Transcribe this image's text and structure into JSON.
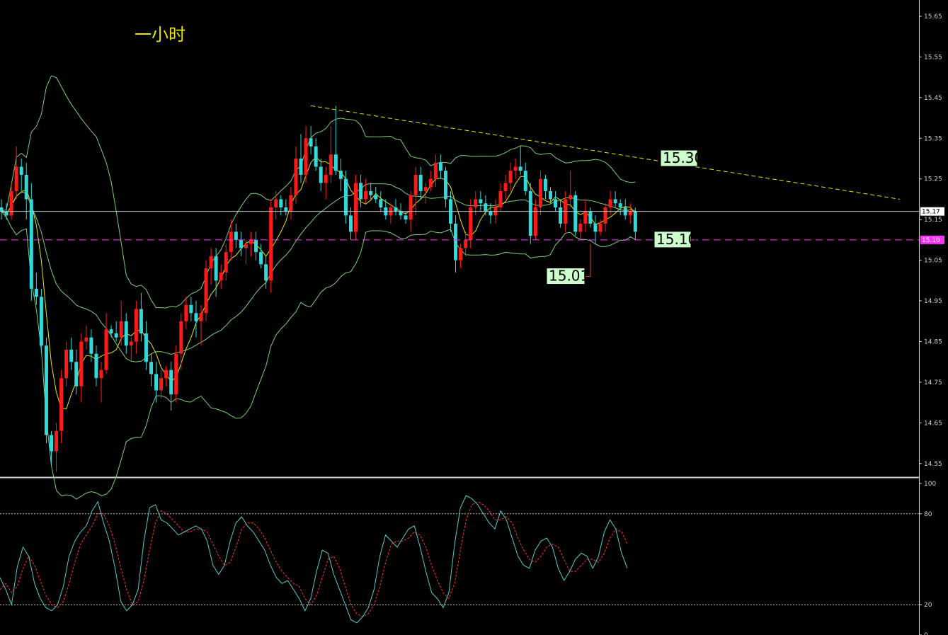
{
  "title": "一小时",
  "chart_data": {
    "type": "candlestick",
    "timeframe_label": "一小时",
    "price_axis": {
      "ticks": [
        "15.65",
        "15.55",
        "15.45",
        "15.35",
        "15.25",
        "15.15",
        "15.05",
        "14.95",
        "14.85",
        "14.75",
        "14.65",
        "14.55"
      ],
      "range": [
        14.52,
        15.69
      ]
    },
    "current_price": {
      "value": 15.17,
      "label": "15.17",
      "color": "#b6c3cf"
    },
    "support_line": {
      "value": 15.1,
      "label": "15.10",
      "color": "#ff33ff"
    },
    "resistance_trendline": {
      "start": {
        "bar": 62,
        "price": 15.43
      },
      "end": {
        "bar": 180,
        "price": 15.2
      },
      "color": "#e6e600"
    },
    "annotations": [
      {
        "label": "15.30",
        "value": 15.3
      },
      {
        "label": "15.10",
        "value": 15.1
      },
      {
        "label": "15.01",
        "value": 15.01
      }
    ],
    "colors": {
      "up": "#ff1a1a",
      "down": "#33d9d9",
      "doji": "#33d933",
      "ma": "#e6e600",
      "bands": "#7dcf7d",
      "k": "#55cccc",
      "d": "#ff3333"
    },
    "candles": [
      [
        15.18,
        15.2,
        15.15,
        15.17
      ],
      [
        15.17,
        15.19,
        15.15,
        15.16
      ],
      [
        15.16,
        15.24,
        15.15,
        15.22
      ],
      [
        15.22,
        15.33,
        15.2,
        15.28
      ],
      [
        15.28,
        15.3,
        15.22,
        15.26
      ],
      [
        15.26,
        15.29,
        15.15,
        15.2
      ],
      [
        15.2,
        15.24,
        14.95,
        14.98
      ],
      [
        14.98,
        15.02,
        14.94,
        14.96
      ],
      [
        14.96,
        14.98,
        14.82,
        14.84
      ],
      [
        14.84,
        14.86,
        14.6,
        14.62
      ],
      [
        14.62,
        14.63,
        14.55,
        14.58
      ],
      [
        14.58,
        14.65,
        14.53,
        14.63
      ],
      [
        14.63,
        14.78,
        14.6,
        14.76
      ],
      [
        14.76,
        14.85,
        14.74,
        14.83
      ],
      [
        14.83,
        14.86,
        14.78,
        14.8
      ],
      [
        14.8,
        14.83,
        14.72,
        14.74
      ],
      [
        14.74,
        14.87,
        14.7,
        14.85
      ],
      [
        14.85,
        14.89,
        14.83,
        14.86
      ],
      [
        14.86,
        14.88,
        14.8,
        14.82
      ],
      [
        14.82,
        14.84,
        14.74,
        14.76
      ],
      [
        14.76,
        14.8,
        14.7,
        14.78
      ],
      [
        14.78,
        14.92,
        14.77,
        14.88
      ],
      [
        14.88,
        14.89,
        14.86,
        14.87
      ],
      [
        14.87,
        14.9,
        14.85,
        14.86
      ],
      [
        14.86,
        14.95,
        14.84,
        14.9
      ],
      [
        14.9,
        14.92,
        14.82,
        14.84
      ],
      [
        14.84,
        14.86,
        14.8,
        14.85
      ],
      [
        14.85,
        14.95,
        14.82,
        14.93
      ],
      [
        14.93,
        14.97,
        14.85,
        14.87
      ],
      [
        14.87,
        14.9,
        14.78,
        14.8
      ],
      [
        14.8,
        14.82,
        14.74,
        14.77
      ],
      [
        14.77,
        14.8,
        14.7,
        14.73
      ],
      [
        14.73,
        14.78,
        14.71,
        14.76
      ],
      [
        14.76,
        14.79,
        14.74,
        14.78
      ],
      [
        14.78,
        14.8,
        14.68,
        14.72
      ],
      [
        14.72,
        14.84,
        14.7,
        14.82
      ],
      [
        14.82,
        14.92,
        14.78,
        14.9
      ],
      [
        14.9,
        14.96,
        14.88,
        14.94
      ],
      [
        14.94,
        14.96,
        14.9,
        14.92
      ],
      [
        14.92,
        14.95,
        14.86,
        14.9
      ],
      [
        14.9,
        14.94,
        14.84,
        14.92
      ],
      [
        14.92,
        15.05,
        14.9,
        15.03
      ],
      [
        15.03,
        15.08,
        14.99,
        15.06
      ],
      [
        15.06,
        15.08,
        14.96,
        15.0
      ],
      [
        15.0,
        15.04,
        14.98,
        15.02
      ],
      [
        15.02,
        15.09,
        15.0,
        15.07
      ],
      [
        15.07,
        15.15,
        15.05,
        15.12
      ],
      [
        15.12,
        15.14,
        15.08,
        15.1
      ],
      [
        15.1,
        15.12,
        15.06,
        15.08
      ],
      [
        15.08,
        15.1,
        15.04,
        15.09
      ],
      [
        15.09,
        15.12,
        15.06,
        15.1
      ],
      [
        15.1,
        15.12,
        15.05,
        15.07
      ],
      [
        15.07,
        15.09,
        15.03,
        15.04
      ],
      [
        15.04,
        15.06,
        14.98,
        15.0
      ],
      [
        15.0,
        15.2,
        14.97,
        15.18
      ],
      [
        15.18,
        15.22,
        15.15,
        15.2
      ],
      [
        15.2,
        15.21,
        15.16,
        15.18
      ],
      [
        15.18,
        15.2,
        15.16,
        15.17
      ],
      [
        15.17,
        15.23,
        15.15,
        15.21
      ],
      [
        15.21,
        15.33,
        15.19,
        15.3
      ],
      [
        15.3,
        15.36,
        15.24,
        15.26
      ],
      [
        15.26,
        15.38,
        15.24,
        15.35
      ],
      [
        15.35,
        15.38,
        15.31,
        15.33
      ],
      [
        15.33,
        15.35,
        15.27,
        15.28
      ],
      [
        15.28,
        15.3,
        15.22,
        15.24
      ],
      [
        15.24,
        15.28,
        15.2,
        15.26
      ],
      [
        15.26,
        15.38,
        15.24,
        15.31
      ],
      [
        15.31,
        15.43,
        15.26,
        15.27
      ],
      [
        15.27,
        15.3,
        15.22,
        15.25
      ],
      [
        15.25,
        15.27,
        15.14,
        15.16
      ],
      [
        15.16,
        15.18,
        15.1,
        15.12
      ],
      [
        15.12,
        15.26,
        15.1,
        15.24
      ],
      [
        15.24,
        15.26,
        15.18,
        15.2
      ],
      [
        15.2,
        15.25,
        15.19,
        15.22
      ],
      [
        15.22,
        15.24,
        15.2,
        15.21
      ],
      [
        15.21,
        15.23,
        15.19,
        15.2
      ],
      [
        15.2,
        15.22,
        15.17,
        15.18
      ],
      [
        15.18,
        15.2,
        15.15,
        15.16
      ],
      [
        15.16,
        15.19,
        15.14,
        15.18
      ],
      [
        15.18,
        15.2,
        15.16,
        15.17
      ],
      [
        15.17,
        15.19,
        15.15,
        15.16
      ],
      [
        15.16,
        15.17,
        15.14,
        15.15
      ],
      [
        15.15,
        15.22,
        15.12,
        15.21
      ],
      [
        15.21,
        15.28,
        15.16,
        15.26
      ],
      [
        15.26,
        15.28,
        15.2,
        15.22
      ],
      [
        15.22,
        15.24,
        15.19,
        15.23
      ],
      [
        15.23,
        15.27,
        15.22,
        15.25
      ],
      [
        15.25,
        15.31,
        15.23,
        15.29
      ],
      [
        15.29,
        15.31,
        15.25,
        15.27
      ],
      [
        15.27,
        15.28,
        15.18,
        15.2
      ],
      [
        15.2,
        15.22,
        15.12,
        15.14
      ],
      [
        15.14,
        15.16,
        15.02,
        15.05
      ],
      [
        15.05,
        15.09,
        15.03,
        15.08
      ],
      [
        15.08,
        15.12,
        15.06,
        15.1
      ],
      [
        15.1,
        15.2,
        15.08,
        15.18
      ],
      [
        15.18,
        15.22,
        15.16,
        15.2
      ],
      [
        15.2,
        15.22,
        15.17,
        15.19
      ],
      [
        15.19,
        15.21,
        15.16,
        15.17
      ],
      [
        15.17,
        15.19,
        15.14,
        15.16
      ],
      [
        15.16,
        15.2,
        15.14,
        15.18
      ],
      [
        15.18,
        15.24,
        15.17,
        15.22
      ],
      [
        15.22,
        15.26,
        15.2,
        15.24
      ],
      [
        15.24,
        15.29,
        15.22,
        15.27
      ],
      [
        15.27,
        15.3,
        15.25,
        15.28
      ],
      [
        15.28,
        15.33,
        15.26,
        15.27
      ],
      [
        15.27,
        15.29,
        15.21,
        15.22
      ],
      [
        15.22,
        15.24,
        15.09,
        15.11
      ],
      [
        15.11,
        15.2,
        15.1,
        15.18
      ],
      [
        15.18,
        15.27,
        15.16,
        15.25
      ],
      [
        15.25,
        15.26,
        15.2,
        15.22
      ],
      [
        15.22,
        15.23,
        15.19,
        15.2
      ],
      [
        15.2,
        15.22,
        15.17,
        15.18
      ],
      [
        15.18,
        15.2,
        15.13,
        15.14
      ],
      [
        15.14,
        15.22,
        15.12,
        15.2
      ],
      [
        15.2,
        15.27,
        15.18,
        15.21
      ],
      [
        15.21,
        15.22,
        15.11,
        15.12
      ],
      [
        15.12,
        15.15,
        15.1,
        15.14
      ],
      [
        15.14,
        15.2,
        15.12,
        15.17
      ],
      [
        15.17,
        15.18,
        15.13,
        15.14
      ],
      [
        15.14,
        15.16,
        15.09,
        15.12
      ],
      [
        15.12,
        15.15,
        15.11,
        15.14
      ],
      [
        15.14,
        15.19,
        15.12,
        15.18
      ],
      [
        15.18,
        15.22,
        15.16,
        15.2
      ],
      [
        15.2,
        15.22,
        15.18,
        15.19
      ],
      [
        15.19,
        15.2,
        15.16,
        15.18
      ],
      [
        15.18,
        15.2,
        15.15,
        15.16
      ],
      [
        15.16,
        15.19,
        15.14,
        15.17
      ],
      [
        15.17,
        15.18,
        15.1,
        15.12
      ]
    ],
    "indicator": {
      "type": "stochastic",
      "ticks": [
        "100",
        "80",
        "20",
        "0"
      ],
      "levels": [
        80,
        20
      ],
      "range": [
        0,
        100
      ],
      "k": [
        38,
        30,
        20,
        45,
        58,
        52,
        34,
        24,
        18,
        16,
        20,
        32,
        52,
        62,
        68,
        72,
        82,
        88,
        74,
        62,
        44,
        22,
        16,
        20,
        30,
        62,
        84,
        86,
        76,
        74,
        70,
        66,
        68,
        70,
        72,
        70,
        62,
        46,
        40,
        46,
        62,
        74,
        78,
        72,
        68,
        62,
        56,
        46,
        38,
        34,
        36,
        30,
        24,
        16,
        24,
        42,
        56,
        54,
        40,
        30,
        20,
        10,
        8,
        12,
        18,
        30,
        52,
        66,
        62,
        58,
        64,
        70,
        72,
        58,
        42,
        28,
        24,
        18,
        28,
        60,
        84,
        92,
        90,
        86,
        80,
        74,
        70,
        82,
        76,
        64,
        52,
        46,
        44,
        56,
        62,
        64,
        58,
        44,
        36,
        42,
        50,
        54,
        52,
        44,
        52,
        68,
        76,
        70,
        54,
        44
      ],
      "d": [
        30,
        34,
        28,
        32,
        44,
        52,
        46,
        36,
        26,
        20,
        18,
        22,
        34,
        48,
        60,
        66,
        72,
        80,
        80,
        72,
        60,
        44,
        30,
        20,
        22,
        36,
        56,
        74,
        82,
        80,
        76,
        72,
        68,
        68,
        70,
        70,
        68,
        60,
        52,
        46,
        48,
        58,
        70,
        74,
        74,
        70,
        64,
        56,
        48,
        42,
        38,
        34,
        32,
        24,
        20,
        26,
        38,
        50,
        52,
        44,
        32,
        20,
        14,
        12,
        14,
        20,
        32,
        48,
        60,
        62,
        62,
        64,
        68,
        66,
        58,
        46,
        36,
        28,
        24,
        34,
        56,
        76,
        86,
        88,
        86,
        82,
        76,
        76,
        78,
        74,
        64,
        56,
        50,
        48,
        52,
        58,
        60,
        58,
        50,
        42,
        42,
        46,
        50,
        50,
        48,
        54,
        64,
        70,
        68,
        60
      ]
    }
  }
}
